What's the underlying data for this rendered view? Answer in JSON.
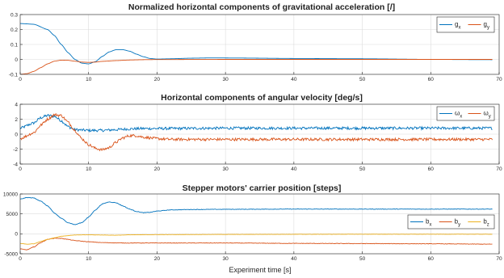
{
  "chart_data": [
    {
      "type": "line",
      "title": "Normalized horizontal components of gravitational acceleration [/]",
      "xlabel": "",
      "ylabel": "",
      "xlim": [
        0,
        70
      ],
      "ylim": [
        -0.1,
        0.3
      ],
      "xticks": [
        0,
        10,
        20,
        30,
        40,
        50,
        60,
        70
      ],
      "yticks": [
        -0.1,
        0,
        0.1,
        0.2,
        0.3
      ],
      "grid": true,
      "legend_position": "top-right",
      "series": [
        {
          "name": "g",
          "subscript": "x",
          "color": "#0072BD",
          "noise": 0,
          "points": [
            [
              0,
              0.24
            ],
            [
              2,
              0.235
            ],
            [
              4,
              0.2
            ],
            [
              5,
              0.16
            ],
            [
              6,
              0.1
            ],
            [
              7,
              0.045
            ],
            [
              8,
              0.0
            ],
            [
              9,
              -0.025
            ],
            [
              10,
              -0.03
            ],
            [
              11,
              -0.015
            ],
            [
              12,
              0.02
            ],
            [
              13,
              0.05
            ],
            [
              14,
              0.065
            ],
            [
              15,
              0.065
            ],
            [
              16,
              0.055
            ],
            [
              17,
              0.035
            ],
            [
              18,
              0.018
            ],
            [
              19,
              0.006
            ],
            [
              20,
              0.002
            ],
            [
              22,
              0.004
            ],
            [
              25,
              0.008
            ],
            [
              28,
              0.01
            ],
            [
              32,
              0.009
            ],
            [
              40,
              0.006
            ],
            [
              50,
              0.004
            ],
            [
              60,
              0.0
            ],
            [
              69,
              -0.002
            ]
          ]
        },
        {
          "name": "g",
          "subscript": "y",
          "color": "#D95319",
          "noise": 0,
          "points": [
            [
              0,
              -0.1
            ],
            [
              1,
              -0.095
            ],
            [
              2,
              -0.08
            ],
            [
              3,
              -0.055
            ],
            [
              4,
              -0.03
            ],
            [
              5,
              -0.012
            ],
            [
              6,
              -0.005
            ],
            [
              7,
              -0.006
            ],
            [
              8,
              -0.012
            ],
            [
              9,
              -0.018
            ],
            [
              10,
              -0.02
            ],
            [
              11,
              -0.018
            ],
            [
              12,
              -0.013
            ],
            [
              14,
              -0.008
            ],
            [
              16,
              -0.004
            ],
            [
              18,
              -0.002
            ],
            [
              20,
              -0.001
            ],
            [
              30,
              0.0
            ],
            [
              40,
              0.0
            ],
            [
              50,
              0.0
            ],
            [
              60,
              0.0
            ],
            [
              69,
              0.0
            ]
          ]
        }
      ]
    },
    {
      "type": "line",
      "title": "Horizontal components of angular velocity [deg/s]",
      "xlabel": "",
      "ylabel": "",
      "xlim": [
        0,
        70
      ],
      "ylim": [
        -4,
        4
      ],
      "xticks": [
        0,
        10,
        20,
        30,
        40,
        50,
        60,
        70
      ],
      "yticks": [
        -4,
        -2,
        0,
        2,
        4
      ],
      "grid": true,
      "legend_position": "top-right",
      "series": [
        {
          "name": "ω",
          "subscript": "x",
          "color": "#0072BD",
          "noise": 0.18,
          "points": [
            [
              0,
              0.8
            ],
            [
              2,
              1.5
            ],
            [
              3,
              2.2
            ],
            [
              4,
              2.5
            ],
            [
              5,
              2.4
            ],
            [
              6,
              1.8
            ],
            [
              7,
              1.0
            ],
            [
              8,
              0.6
            ],
            [
              10,
              0.5
            ],
            [
              12,
              0.5
            ],
            [
              14,
              0.6
            ],
            [
              16,
              0.7
            ],
            [
              18,
              0.75
            ],
            [
              20,
              0.75
            ],
            [
              30,
              0.8
            ],
            [
              40,
              0.8
            ],
            [
              50,
              0.8
            ],
            [
              60,
              0.8
            ],
            [
              69,
              0.8
            ]
          ]
        },
        {
          "name": "ω",
          "subscript": "y",
          "color": "#D95319",
          "noise": 0.18,
          "points": [
            [
              0,
              -0.6
            ],
            [
              2,
              0.2
            ],
            [
              3,
              1.2
            ],
            [
              4,
              2.0
            ],
            [
              5,
              2.6
            ],
            [
              6,
              2.5
            ],
            [
              7,
              1.6
            ],
            [
              8,
              0.5
            ],
            [
              9,
              -0.6
            ],
            [
              10,
              -1.4
            ],
            [
              11,
              -1.9
            ],
            [
              12,
              -2.1
            ],
            [
              13,
              -1.8
            ],
            [
              14,
              -1.1
            ],
            [
              15,
              -0.5
            ],
            [
              16,
              -0.2
            ],
            [
              17,
              -0.2
            ],
            [
              18,
              -0.4
            ],
            [
              20,
              -0.6
            ],
            [
              22,
              -0.7
            ],
            [
              30,
              -0.7
            ],
            [
              40,
              -0.7
            ],
            [
              50,
              -0.7
            ],
            [
              60,
              -0.7
            ],
            [
              69,
              -0.7
            ]
          ]
        }
      ]
    },
    {
      "type": "line",
      "title": "Stepper motors' carrier position [steps]",
      "xlabel": "Experiment time [s]",
      "ylabel": "",
      "xlim": [
        0,
        70
      ],
      "ylim": [
        -5000,
        10000
      ],
      "xticks": [
        0,
        10,
        20,
        30,
        40,
        50,
        60,
        70
      ],
      "yticks": [
        -5000,
        0,
        5000,
        10000
      ],
      "grid": true,
      "legend_position": "right",
      "series": [
        {
          "name": "b",
          "subscript": "x",
          "color": "#0072BD",
          "noise": 60,
          "points": [
            [
              0,
              8700
            ],
            [
              1,
              9100
            ],
            [
              2,
              9000
            ],
            [
              3,
              8200
            ],
            [
              4,
              7000
            ],
            [
              5,
              5200
            ],
            [
              6,
              3900
            ],
            [
              7,
              2800
            ],
            [
              8,
              2300
            ],
            [
              9,
              2800
            ],
            [
              10,
              4200
            ],
            [
              11,
              6000
            ],
            [
              12,
              7500
            ],
            [
              13,
              8000
            ],
            [
              14,
              7800
            ],
            [
              15,
              7000
            ],
            [
              16,
              6200
            ],
            [
              17,
              5600
            ],
            [
              18,
              5300
            ],
            [
              19,
              5400
            ],
            [
              20,
              5700
            ],
            [
              22,
              6000
            ],
            [
              25,
              6100
            ],
            [
              30,
              6150
            ],
            [
              40,
              6200
            ],
            [
              50,
              6200
            ],
            [
              60,
              6200
            ],
            [
              69,
              6200
            ]
          ]
        },
        {
          "name": "b",
          "subscript": "y",
          "color": "#D95319",
          "noise": 60,
          "points": [
            [
              0,
              -3800
            ],
            [
              1,
              -4000
            ],
            [
              2,
              -3300
            ],
            [
              3,
              -2200
            ],
            [
              4,
              -1400
            ],
            [
              5,
              -1100
            ],
            [
              6,
              -1150
            ],
            [
              7,
              -1400
            ],
            [
              8,
              -1700
            ],
            [
              10,
              -2000
            ],
            [
              12,
              -2200
            ],
            [
              15,
              -2300
            ],
            [
              20,
              -2300
            ],
            [
              30,
              -2300
            ],
            [
              40,
              -2400
            ],
            [
              50,
              -2450
            ],
            [
              60,
              -2500
            ],
            [
              69,
              -2600
            ]
          ]
        },
        {
          "name": "b",
          "subscript": "z",
          "color": "#EDB120",
          "noise": 30,
          "points": [
            [
              0,
              -2400
            ],
            [
              1,
              -2600
            ],
            [
              2,
              -2500
            ],
            [
              3,
              -1900
            ],
            [
              4,
              -1400
            ],
            [
              5,
              -1000
            ],
            [
              6,
              -600
            ],
            [
              8,
              -300
            ],
            [
              10,
              -250
            ],
            [
              12,
              -300
            ],
            [
              14,
              -350
            ],
            [
              16,
              -250
            ],
            [
              20,
              -200
            ],
            [
              30,
              -150
            ],
            [
              40,
              -120
            ],
            [
              50,
              -100
            ],
            [
              60,
              -100
            ],
            [
              69,
              -100
            ]
          ]
        }
      ]
    }
  ]
}
